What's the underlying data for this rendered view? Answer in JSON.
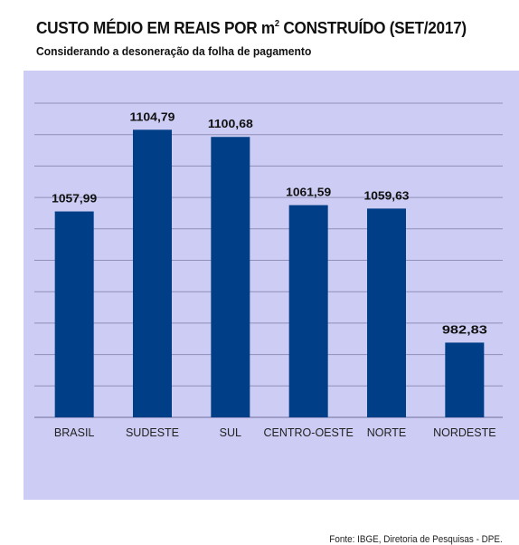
{
  "header": {
    "title_pre": "CUSTO MÉDIO EM REAIS POR m",
    "title_sup": "2",
    "title_post": " CONSTRUÍDO (SET/2017)",
    "subtitle": "Considerando a desoneração da folha de pagamento"
  },
  "footer": {
    "source": "Fonte: IBGE, Diretoria de Pesquisas - DPE."
  },
  "colors": {
    "bar": "#003f87",
    "background": "#ccccf4",
    "grid": "#8f8fb8"
  },
  "chart_data": {
    "type": "bar",
    "categories": [
      "BRASIL",
      "SUDESTE",
      "SUL",
      "CENTRO-OESTE",
      "NORTE",
      "NORDESTE"
    ],
    "values": [
      1057.99,
      1104.79,
      1100.68,
      1061.59,
      1059.63,
      982.83
    ],
    "value_labels": [
      "1057,99",
      "1104,79",
      "1100,68",
      "1061,59",
      "1059,63",
      "982,83"
    ],
    "title": "CUSTO MÉDIO EM REAIS POR m² CONSTRUÍDO (SET/2017)",
    "xlabel": "",
    "ylabel": "",
    "ylim": [
      940,
      1120
    ],
    "grid": true,
    "legend": "none"
  }
}
